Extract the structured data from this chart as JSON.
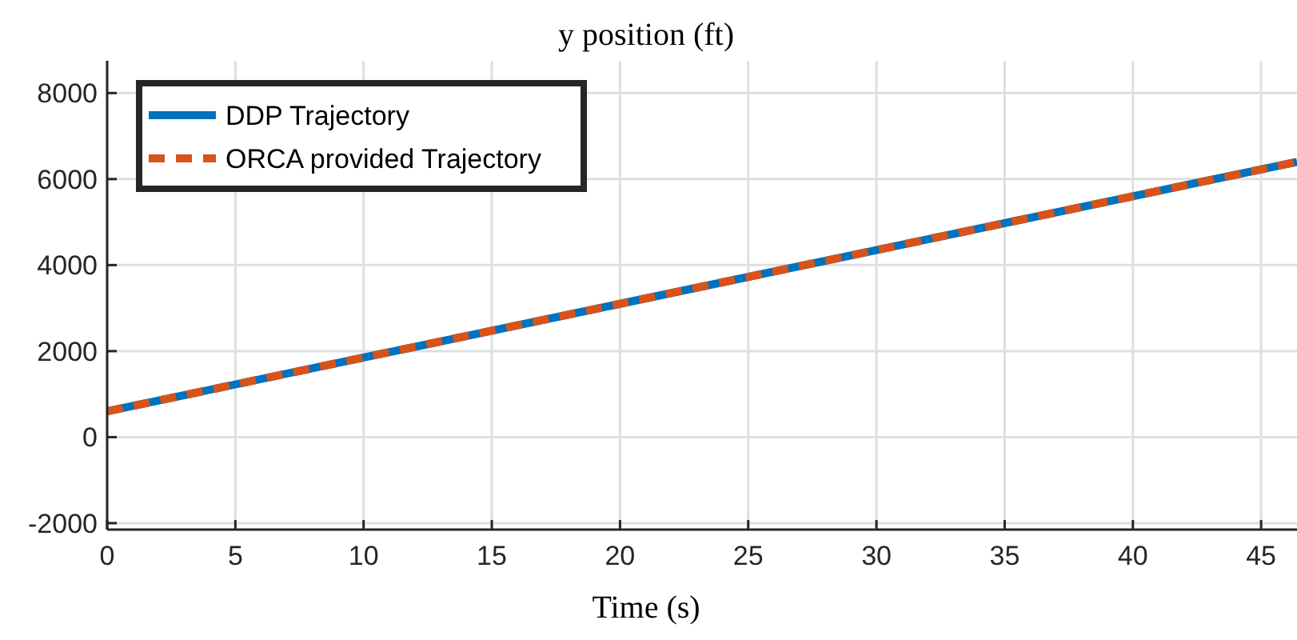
{
  "chart_data": {
    "type": "line",
    "title": "y position (ft)",
    "xlabel": "Time (s)",
    "x": [
      0,
      10,
      20,
      30,
      40,
      46.4
    ],
    "series": [
      {
        "name": "DDP Trajectory",
        "color": "#0072bd",
        "values": [
          600,
          1850,
          3100,
          4350,
          5600,
          6400
        ],
        "line_style": "solid"
      },
      {
        "name": "ORCA provided Trajectory",
        "color": "#d95319",
        "values": [
          600,
          1850,
          3100,
          4350,
          5600,
          6400
        ],
        "line_style": "dashed"
      }
    ],
    "xlim": [
      0,
      46.4
    ],
    "xticks": [
      0,
      5,
      10,
      15,
      20,
      25,
      30,
      35,
      40,
      45
    ],
    "ylim": [
      -2150,
      8750
    ],
    "yticks": [
      -2000,
      0,
      2000,
      4000,
      6000,
      8000
    ],
    "grid": true,
    "legend": "top left",
    "marker": "none"
  }
}
